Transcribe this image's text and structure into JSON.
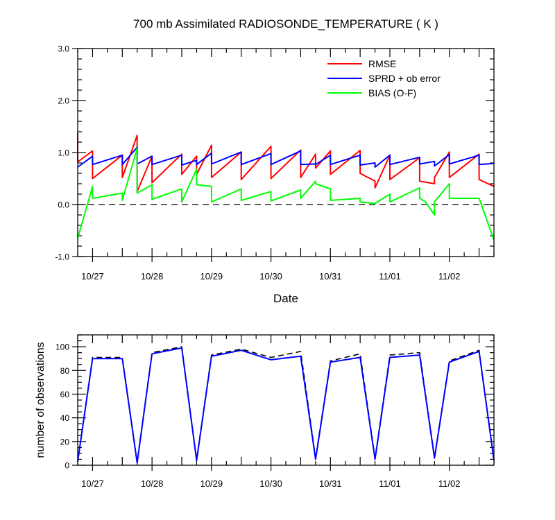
{
  "chart_data": [
    {
      "type": "line",
      "title": "700 mb Assimilated RADIOSONDE_TEMPERATURE ( K )",
      "xlabel": "Date",
      "ylabel": "",
      "x_tick_labels": [
        "10/27",
        "10/28",
        "10/29",
        "10/30",
        "10/31",
        "11/01",
        "11/02"
      ],
      "xlim": [
        -0.25,
        6.75
      ],
      "ylim": [
        -1.0,
        3.0
      ],
      "y_ticks": [
        -1.0,
        0.0,
        1.0,
        2.0,
        3.0
      ],
      "y_tick_labels": [
        "-1.0",
        "0.0",
        "1.0",
        "2.0",
        "3.0"
      ],
      "reference_line": {
        "y": 0.0,
        "style": "dashed",
        "color": "#000000"
      },
      "legend_position": "top-right",
      "series": [
        {
          "name": "RMSE",
          "color": "#ff0000",
          "x": [
            -0.25,
            -0.25,
            0,
            0,
            0.5,
            0.5,
            0.75,
            0.75,
            1,
            1,
            1.5,
            1.5,
            1.75,
            1.75,
            2,
            2,
            2.5,
            2.5,
            3,
            3,
            3.5,
            3.5,
            3.75,
            3.75,
            4,
            4,
            4.5,
            4.5,
            4.75,
            4.75,
            5,
            5,
            5.5,
            5.5,
            5.75,
            5.75,
            6,
            6,
            6.5,
            6.5,
            6.75
          ],
          "y": [
            1.38,
            0.82,
            1.03,
            0.5,
            0.95,
            0.52,
            1.33,
            0.25,
            0.93,
            0.42,
            0.97,
            0.58,
            0.93,
            0.58,
            1.14,
            0.52,
            1.01,
            0.48,
            1.12,
            0.5,
            1.05,
            0.52,
            0.97,
            0.7,
            1.03,
            0.58,
            1.04,
            0.6,
            0.45,
            0.32,
            0.95,
            0.48,
            0.9,
            0.45,
            0.4,
            0.52,
            1.01,
            0.52,
            0.97,
            0.48,
            0.35
          ]
        },
        {
          "name": "SPRD + ob error",
          "color": "#0000ff",
          "x": [
            -0.25,
            0,
            0,
            0.5,
            0.5,
            0.75,
            0.75,
            1,
            1,
            1.5,
            1.5,
            1.75,
            1.75,
            2,
            2,
            2.5,
            2.5,
            3,
            3,
            3.5,
            3.5,
            3.75,
            3.75,
            4,
            4,
            4.5,
            4.5,
            4.75,
            4.75,
            5,
            5,
            5.5,
            5.5,
            5.75,
            5.75,
            6,
            6,
            6.5,
            6.5,
            6.75
          ],
          "y": [
            0.72,
            0.93,
            0.77,
            0.95,
            0.77,
            1.1,
            0.78,
            0.93,
            0.77,
            0.95,
            0.76,
            0.85,
            0.77,
            0.99,
            0.78,
            1.01,
            0.77,
            0.98,
            0.77,
            1.03,
            0.77,
            0.78,
            0.77,
            0.95,
            0.77,
            0.95,
            0.76,
            0.8,
            0.72,
            0.95,
            0.77,
            0.91,
            0.78,
            0.83,
            0.74,
            0.96,
            0.78,
            0.95,
            0.77,
            0.79
          ]
        },
        {
          "name": "BIAS (O-F)",
          "color": "#00ff00",
          "x": [
            -0.25,
            0,
            0,
            0.5,
            0.5,
            0.75,
            0.75,
            1,
            1,
            1.5,
            1.5,
            1.75,
            1.75,
            2,
            2,
            2.5,
            2.5,
            3,
            3,
            3.5,
            3.5,
            3.75,
            3.75,
            4,
            4,
            4.5,
            4.5,
            4.75,
            4.75,
            5,
            5,
            5.5,
            5.5,
            5.6,
            5.75,
            5.75,
            6,
            6,
            6.5,
            6.5,
            6.75
          ],
          "y": [
            -0.65,
            0.35,
            0.12,
            0.22,
            0.08,
            1.08,
            0.22,
            0.38,
            0.1,
            0.3,
            0.05,
            0.68,
            0.38,
            0.35,
            0.05,
            0.3,
            0.08,
            0.25,
            0.07,
            0.28,
            0.12,
            0.45,
            0.4,
            0.3,
            0.08,
            0.12,
            0.05,
            0.02,
            0.02,
            0.2,
            0.05,
            0.32,
            0.12,
            0.05,
            -0.2,
            0.05,
            0.4,
            0.12,
            0.12,
            0.12,
            -0.68
          ]
        }
      ]
    },
    {
      "type": "line",
      "title": "",
      "xlabel": "",
      "ylabel": "number of observations",
      "x_tick_labels": [
        "10/27",
        "10/28",
        "10/29",
        "10/30",
        "10/31",
        "11/01",
        "11/02"
      ],
      "xlim": [
        -0.25,
        6.75
      ],
      "ylim": [
        0,
        110
      ],
      "y_ticks": [
        0,
        20,
        40,
        60,
        80,
        100
      ],
      "y_tick_labels": [
        "0",
        "20",
        "40",
        "60",
        "80",
        "100"
      ],
      "series": [
        {
          "color": "#000000",
          "style": "dashed",
          "x": [
            -0.25,
            0,
            0.5,
            0.75,
            1,
            1.5,
            1.75,
            2,
            2.5,
            3,
            3.5,
            3.75,
            4,
            4.5,
            4.75,
            5,
            5.5,
            5.75,
            6,
            6.5,
            6.75
          ],
          "y": [
            4,
            91,
            91,
            3,
            95,
            100,
            5,
            93,
            98,
            91,
            96,
            6,
            88,
            94,
            6,
            93,
            95,
            7,
            88,
            97,
            5
          ]
        },
        {
          "color": "#0000ff",
          "style": "solid",
          "x": [
            -0.25,
            0,
            0.5,
            0.75,
            1,
            1.5,
            1.75,
            2,
            2.5,
            3,
            3.5,
            3.75,
            4,
            4.5,
            4.75,
            5,
            5.5,
            5.75,
            6,
            6.5,
            6.75
          ],
          "y": [
            3,
            90,
            90,
            2,
            94,
            99,
            4,
            92,
            97,
            89,
            92,
            5,
            87,
            91,
            5,
            91,
            93,
            6,
            87,
            96,
            4
          ]
        }
      ]
    }
  ]
}
